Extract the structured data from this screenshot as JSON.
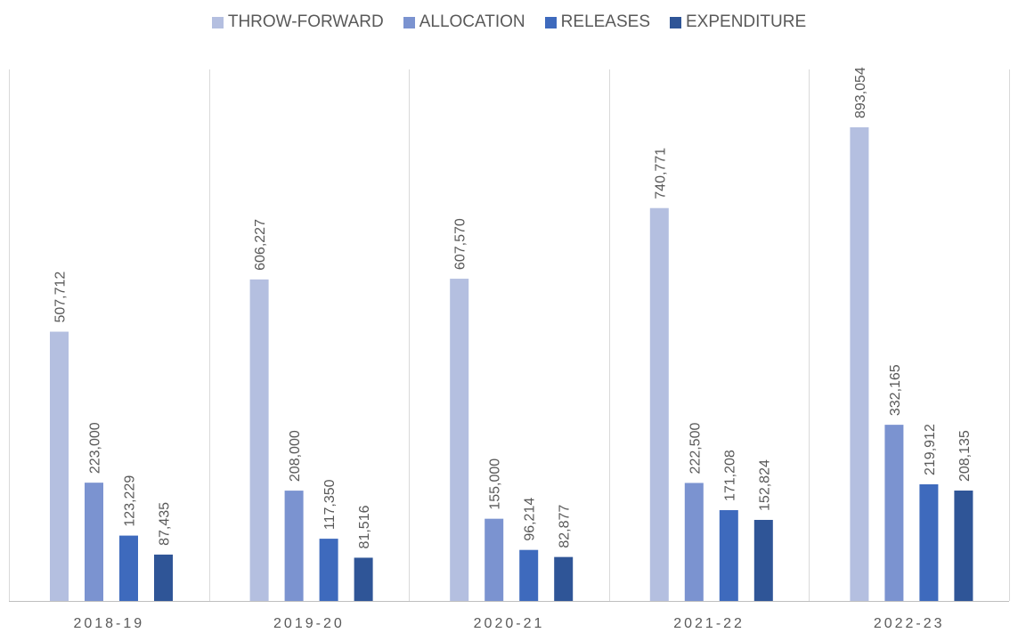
{
  "chart_data": {
    "type": "bar",
    "title": "",
    "xlabel": "",
    "ylabel": "",
    "ylim": [
      0,
      950000
    ],
    "grid": false,
    "legend_position": "top-center",
    "categories": [
      "2018-19",
      "2019-20",
      "2020-21",
      "2021-22",
      "2022-23"
    ],
    "series": [
      {
        "name": "THROW-FORWARD",
        "color": "#b4bfe0",
        "values": [
          507712,
          606227,
          607570,
          740771,
          893054
        ],
        "labels": [
          "507,712",
          "606,227",
          "607,570",
          "740,771",
          "893,054"
        ]
      },
      {
        "name": "ALLOCATION",
        "color": "#7b93d0",
        "values": [
          223000,
          208000,
          155000,
          222500,
          332165
        ],
        "labels": [
          "223,000",
          "208,000",
          "155,000",
          "222,500",
          "332,165"
        ]
      },
      {
        "name": "RELEASES",
        "color": "#3e6abd",
        "values": [
          123229,
          117350,
          96214,
          171208,
          219912
        ],
        "labels": [
          "123,229",
          "117,350",
          "96,214",
          "171,208",
          "219,912"
        ]
      },
      {
        "name": "EXPENDITURE",
        "color": "#2f5597",
        "values": [
          87435,
          81516,
          82877,
          152824,
          208135
        ],
        "labels": [
          "87,435",
          "81,516",
          "82,877",
          "152,824",
          "208,135"
        ]
      }
    ]
  },
  "style": {
    "divider_color": "#d9d9d9",
    "axis_color": "#bfbfbf",
    "text_color": "#595959"
  }
}
